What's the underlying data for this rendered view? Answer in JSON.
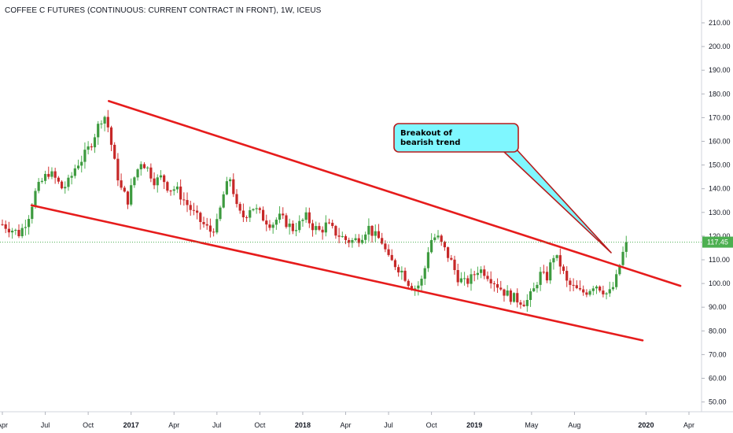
{
  "header": {
    "title": "COFFEE C FUTURES (CONTINUOUS: CURRENT CONTRACT IN FRONT), 1W, ICEUS"
  },
  "chart_data": {
    "type": "candlestick",
    "y_axis": {
      "ticks": [
        "210.00",
        "200.00",
        "190.00",
        "180.00",
        "170.00",
        "160.00",
        "150.00",
        "140.00",
        "130.00",
        "120.00",
        "110.00",
        "100.00",
        "90.00",
        "80.00",
        "70.00",
        "60.00",
        "50.00"
      ],
      "ylim": [
        45,
        220
      ]
    },
    "x_axis": {
      "ticks": [
        {
          "label": "Apr",
          "t": 2016.25
        },
        {
          "label": "Jul",
          "t": 2016.5
        },
        {
          "label": "Oct",
          "t": 2016.75
        },
        {
          "label": "2017",
          "t": 2017.0,
          "bold": true
        },
        {
          "label": "Apr",
          "t": 2017.25
        },
        {
          "label": "Jul",
          "t": 2017.5
        },
        {
          "label": "Oct",
          "t": 2017.75
        },
        {
          "label": "2018",
          "t": 2018.0,
          "bold": true
        },
        {
          "label": "Apr",
          "t": 2018.25
        },
        {
          "label": "Jul",
          "t": 2018.5
        },
        {
          "label": "Oct",
          "t": 2018.75
        },
        {
          "label": "2019",
          "t": 2019.0,
          "bold": true
        },
        {
          "label": "May",
          "t": 2019.333
        },
        {
          "label": "Aug",
          "t": 2019.583
        },
        {
          "label": "2020",
          "t": 2020.0,
          "bold": true
        },
        {
          "label": "Apr",
          "t": 2020.25
        }
      ]
    },
    "last_price": {
      "label": "117.45",
      "value": 117.45
    },
    "close_path": [
      [
        2016.25,
        125
      ],
      [
        2016.3,
        123
      ],
      [
        2016.35,
        121
      ],
      [
        2016.4,
        128
      ],
      [
        2016.44,
        138
      ],
      [
        2016.48,
        143
      ],
      [
        2016.52,
        147
      ],
      [
        2016.56,
        144
      ],
      [
        2016.6,
        140
      ],
      [
        2016.64,
        143
      ],
      [
        2016.68,
        150
      ],
      [
        2016.72,
        153
      ],
      [
        2016.76,
        158
      ],
      [
        2016.8,
        165
      ],
      [
        2016.84,
        172
      ],
      [
        2016.87,
        165
      ],
      [
        2016.9,
        152
      ],
      [
        2016.94,
        140
      ],
      [
        2016.98,
        135
      ],
      [
        2017.02,
        145
      ],
      [
        2017.06,
        152
      ],
      [
        2017.1,
        148
      ],
      [
        2017.14,
        143
      ],
      [
        2017.18,
        145
      ],
      [
        2017.22,
        140
      ],
      [
        2017.26,
        140
      ],
      [
        2017.3,
        136
      ],
      [
        2017.34,
        132
      ],
      [
        2017.38,
        128
      ],
      [
        2017.42,
        125
      ],
      [
        2017.46,
        122
      ],
      [
        2017.5,
        125
      ],
      [
        2017.54,
        138
      ],
      [
        2017.58,
        145
      ],
      [
        2017.62,
        130
      ],
      [
        2017.66,
        128
      ],
      [
        2017.7,
        133
      ],
      [
        2017.74,
        130
      ],
      [
        2017.78,
        127
      ],
      [
        2017.82,
        125
      ],
      [
        2017.86,
        128
      ],
      [
        2017.9,
        126
      ],
      [
        2017.94,
        123
      ],
      [
        2017.98,
        125
      ],
      [
        2018.02,
        128
      ],
      [
        2018.06,
        124
      ],
      [
        2018.1,
        122
      ],
      [
        2018.14,
        125
      ],
      [
        2018.18,
        122
      ],
      [
        2018.22,
        120
      ],
      [
        2018.26,
        118
      ],
      [
        2018.3,
        118
      ],
      [
        2018.34,
        120
      ],
      [
        2018.38,
        124
      ],
      [
        2018.42,
        120
      ],
      [
        2018.46,
        118
      ],
      [
        2018.5,
        110
      ],
      [
        2018.54,
        108
      ],
      [
        2018.58,
        105
      ],
      [
        2018.62,
        100
      ],
      [
        2018.66,
        98
      ],
      [
        2018.7,
        102
      ],
      [
        2018.74,
        118
      ],
      [
        2018.78,
        120
      ],
      [
        2018.82,
        115
      ],
      [
        2018.86,
        110
      ],
      [
        2018.9,
        103
      ],
      [
        2018.94,
        100
      ],
      [
        2018.98,
        102
      ],
      [
        2019.02,
        106
      ],
      [
        2019.06,
        105
      ],
      [
        2019.1,
        102
      ],
      [
        2019.14,
        99
      ],
      [
        2019.18,
        96
      ],
      [
        2019.22,
        94
      ],
      [
        2019.26,
        93
      ],
      [
        2019.3,
        92
      ],
      [
        2019.34,
        96
      ],
      [
        2019.38,
        104
      ],
      [
        2019.42,
        102
      ],
      [
        2019.46,
        112
      ],
      [
        2019.5,
        108
      ],
      [
        2019.54,
        100
      ],
      [
        2019.58,
        98
      ],
      [
        2019.62,
        96
      ],
      [
        2019.66,
        97
      ],
      [
        2019.7,
        100
      ],
      [
        2019.74,
        98
      ],
      [
        2019.78,
        95
      ],
      [
        2019.82,
        100
      ],
      [
        2019.86,
        112
      ],
      [
        2019.9,
        117.45
      ]
    ],
    "lines": [
      {
        "name": "upper",
        "from": [
          2016.87,
          177
        ],
        "to": [
          2020.2,
          99
        ]
      },
      {
        "name": "lower",
        "from": [
          2016.42,
          133
        ],
        "to": [
          2019.98,
          76
        ]
      }
    ],
    "annotations": [
      {
        "text": [
          "Breakout of",
          "bearish trend"
        ],
        "color": "#7ff7ff",
        "border": "#b71c1c"
      }
    ],
    "colors": {
      "up": "#4caf50",
      "down": "#d32f2f",
      "body_up": "#3d9a3f",
      "body_down": "#c62828",
      "trend": "#e61c1c",
      "price": "#4caf50"
    }
  }
}
